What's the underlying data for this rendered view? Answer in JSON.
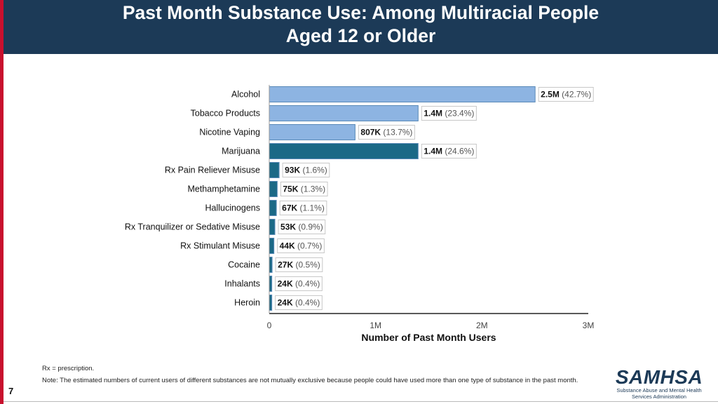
{
  "header": {
    "title": "Past Month Substance Use: Among Multiracial People\nAged 12 or Older"
  },
  "chart_data": {
    "type": "bar",
    "orientation": "horizontal",
    "xlabel": "Number of Past Month Users",
    "xlim": [
      0,
      3000000
    ],
    "x_ticks": [
      0,
      1000000,
      2000000,
      3000000
    ],
    "x_tick_labels": [
      "0",
      "1M",
      "2M",
      "3M"
    ],
    "grid": false,
    "categories": [
      "Alcohol",
      "Tobacco Products",
      "Nicotine Vaping",
      "Marijuana",
      "Rx Pain Reliever Misuse",
      "Methamphetamine",
      "Hallucinogens",
      "Rx Tranquilizer or Sedative Misuse",
      "Rx Stimulant Misuse",
      "Cocaine",
      "Inhalants",
      "Heroin"
    ],
    "values": [
      2500000,
      1400000,
      807000,
      1400000,
      93000,
      75000,
      67000,
      53000,
      44000,
      27000,
      24000,
      24000
    ],
    "value_labels": [
      "2.5M",
      "1.4M",
      "807K",
      "1.4M",
      "93K",
      "75K",
      "67K",
      "53K",
      "44K",
      "27K",
      "24K",
      "24K"
    ],
    "percent_labels": [
      "(42.7%)",
      "(23.4%)",
      "(13.7%)",
      "(24.6%)",
      "(1.6%)",
      "(1.3%)",
      "(1.1%)",
      "(0.9%)",
      "(0.7%)",
      "(0.5%)",
      "(0.4%)",
      "(0.4%)"
    ],
    "bar_colors": [
      "#8db4e2",
      "#8db4e2",
      "#8db4e2",
      "#1b6986",
      "#1b6986",
      "#1b6986",
      "#1b6986",
      "#1b6986",
      "#1b6986",
      "#1b6986",
      "#1b6986",
      "#1b6986"
    ]
  },
  "notes": {
    "rx": "Rx = prescription.",
    "note": "Note: The estimated numbers of current users of different substances are not mutually exclusive because people could have used more than one type of substance in the past month."
  },
  "footer": {
    "page_number": "7",
    "logo_name": "SAMHSA",
    "logo_subtitle": "Substance Abuse and Mental Health\nServices Administration"
  },
  "colors": {
    "header_bg": "#1c3a57",
    "accent_red": "#c8102e",
    "bar_light": "#8db4e2",
    "bar_dark": "#1b6986"
  }
}
